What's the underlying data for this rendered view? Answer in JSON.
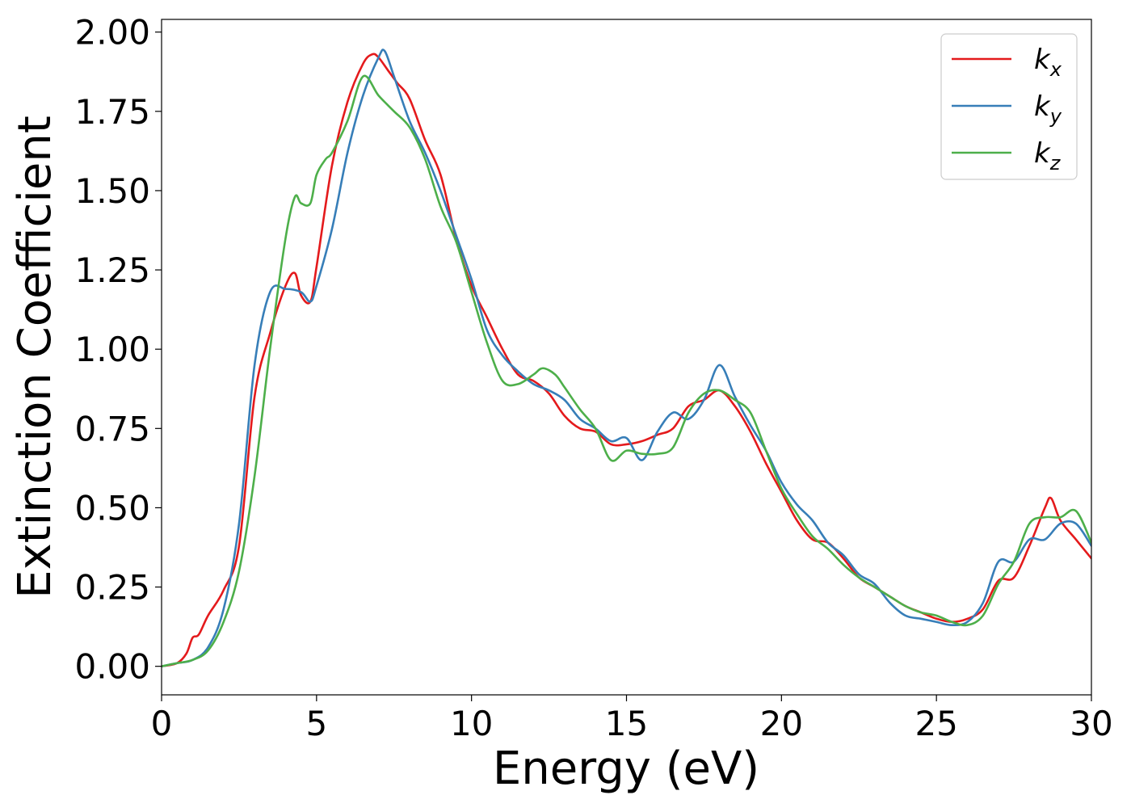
{
  "chart_data": {
    "type": "line",
    "title": "",
    "xlabel": "Energy (eV)",
    "ylabel": "Extinction Coefficient",
    "xlim": [
      0,
      30
    ],
    "ylim": [
      -0.09,
      2.04
    ],
    "xticks": [
      0,
      5,
      10,
      15,
      20,
      25,
      30
    ],
    "xtick_labels": [
      "0",
      "5",
      "10",
      "15",
      "20",
      "25",
      "30"
    ],
    "yticks": [
      0.0,
      0.25,
      0.5,
      0.75,
      1.0,
      1.25,
      1.5,
      1.75,
      2.0
    ],
    "ytick_labels": [
      "0.00",
      "0.25",
      "0.50",
      "0.75",
      "1.00",
      "1.25",
      "1.50",
      "1.75",
      "2.00"
    ],
    "grid": false,
    "legend_position": "top-right",
    "series": [
      {
        "name": "k_x",
        "label_base": "k",
        "label_sub": "x",
        "color": "#e41a1c",
        "x": [
          0,
          0.5,
          0.8,
          1.0,
          1.2,
          1.5,
          2.0,
          2.5,
          3.0,
          3.5,
          4.0,
          4.3,
          4.5,
          4.8,
          5.0,
          5.5,
          6.0,
          6.5,
          6.8,
          7.0,
          7.3,
          7.6,
          8.0,
          8.5,
          9.0,
          9.5,
          10.0,
          10.5,
          11.0,
          11.5,
          12.0,
          12.5,
          13.0,
          13.5,
          14.0,
          14.5,
          15.0,
          15.5,
          16.0,
          16.5,
          17.0,
          17.5,
          18.0,
          18.5,
          19.0,
          19.5,
          20.0,
          20.5,
          21.0,
          21.5,
          22.0,
          22.5,
          23.0,
          23.5,
          24.0,
          24.5,
          25.0,
          25.5,
          26.0,
          26.5,
          27.0,
          27.5,
          28.0,
          28.5,
          28.7,
          29.0,
          29.5,
          30.0
        ],
        "y": [
          0.0,
          0.01,
          0.04,
          0.09,
          0.1,
          0.16,
          0.24,
          0.38,
          0.85,
          1.05,
          1.2,
          1.24,
          1.17,
          1.15,
          1.26,
          1.58,
          1.78,
          1.9,
          1.93,
          1.92,
          1.88,
          1.84,
          1.79,
          1.66,
          1.55,
          1.35,
          1.2,
          1.1,
          1.0,
          0.92,
          0.9,
          0.86,
          0.79,
          0.75,
          0.74,
          0.7,
          0.7,
          0.71,
          0.73,
          0.75,
          0.82,
          0.84,
          0.87,
          0.82,
          0.74,
          0.64,
          0.55,
          0.46,
          0.4,
          0.39,
          0.34,
          0.28,
          0.25,
          0.22,
          0.19,
          0.17,
          0.15,
          0.14,
          0.15,
          0.18,
          0.27,
          0.28,
          0.38,
          0.5,
          0.53,
          0.46,
          0.4,
          0.34
        ]
      },
      {
        "name": "k_y",
        "label_base": "k",
        "label_sub": "y",
        "color": "#377eb8",
        "x": [
          0,
          0.5,
          1.0,
          1.5,
          2.0,
          2.5,
          3.0,
          3.5,
          4.0,
          4.5,
          4.8,
          5.0,
          5.5,
          6.0,
          6.5,
          7.0,
          7.2,
          7.5,
          8.0,
          8.5,
          9.0,
          9.5,
          10.0,
          10.5,
          11.0,
          11.5,
          12.0,
          12.5,
          13.0,
          13.5,
          14.0,
          14.5,
          15.0,
          15.5,
          16.0,
          16.5,
          17.0,
          17.5,
          18.0,
          18.5,
          19.0,
          19.5,
          20.0,
          20.5,
          21.0,
          21.5,
          22.0,
          22.5,
          23.0,
          23.5,
          24.0,
          24.5,
          25.0,
          25.5,
          26.0,
          26.5,
          27.0,
          27.5,
          28.0,
          28.5,
          29.0,
          29.5,
          30.0
        ],
        "y": [
          0.0,
          0.01,
          0.02,
          0.06,
          0.18,
          0.45,
          0.95,
          1.18,
          1.19,
          1.18,
          1.15,
          1.2,
          1.38,
          1.62,
          1.8,
          1.92,
          1.94,
          1.86,
          1.72,
          1.62,
          1.5,
          1.36,
          1.22,
          1.06,
          0.98,
          0.93,
          0.89,
          0.87,
          0.84,
          0.78,
          0.75,
          0.71,
          0.72,
          0.65,
          0.74,
          0.8,
          0.78,
          0.84,
          0.95,
          0.85,
          0.76,
          0.68,
          0.58,
          0.51,
          0.46,
          0.39,
          0.35,
          0.29,
          0.26,
          0.2,
          0.16,
          0.15,
          0.14,
          0.13,
          0.14,
          0.2,
          0.33,
          0.33,
          0.4,
          0.4,
          0.45,
          0.45,
          0.38
        ]
      },
      {
        "name": "k_z",
        "label_base": "k",
        "label_sub": "z",
        "color": "#4daf4a",
        "x": [
          0,
          0.5,
          1.0,
          1.5,
          2.0,
          2.5,
          3.0,
          3.5,
          4.0,
          4.3,
          4.5,
          4.8,
          5.0,
          5.3,
          5.5,
          6.0,
          6.5,
          7.0,
          7.5,
          8.0,
          8.5,
          9.0,
          9.5,
          10.0,
          10.5,
          11.0,
          11.5,
          12.0,
          12.3,
          12.7,
          13.0,
          13.5,
          14.0,
          14.5,
          15.0,
          15.5,
          16.0,
          16.5,
          17.0,
          17.5,
          18.0,
          18.5,
          19.0,
          19.5,
          20.0,
          20.5,
          21.0,
          21.5,
          22.0,
          22.5,
          23.0,
          23.5,
          24.0,
          24.5,
          25.0,
          25.5,
          26.0,
          26.5,
          27.0,
          27.5,
          28.0,
          28.5,
          29.0,
          29.5,
          30.0
        ],
        "y": [
          0.0,
          0.01,
          0.02,
          0.05,
          0.14,
          0.3,
          0.6,
          1.0,
          1.35,
          1.48,
          1.46,
          1.46,
          1.55,
          1.6,
          1.62,
          1.72,
          1.86,
          1.8,
          1.75,
          1.7,
          1.6,
          1.45,
          1.34,
          1.18,
          1.02,
          0.9,
          0.89,
          0.92,
          0.94,
          0.92,
          0.88,
          0.81,
          0.75,
          0.65,
          0.68,
          0.67,
          0.67,
          0.69,
          0.8,
          0.86,
          0.87,
          0.84,
          0.8,
          0.68,
          0.56,
          0.48,
          0.41,
          0.37,
          0.32,
          0.28,
          0.25,
          0.22,
          0.19,
          0.17,
          0.16,
          0.14,
          0.13,
          0.16,
          0.26,
          0.33,
          0.45,
          0.47,
          0.47,
          0.49,
          0.39
        ]
      }
    ]
  }
}
